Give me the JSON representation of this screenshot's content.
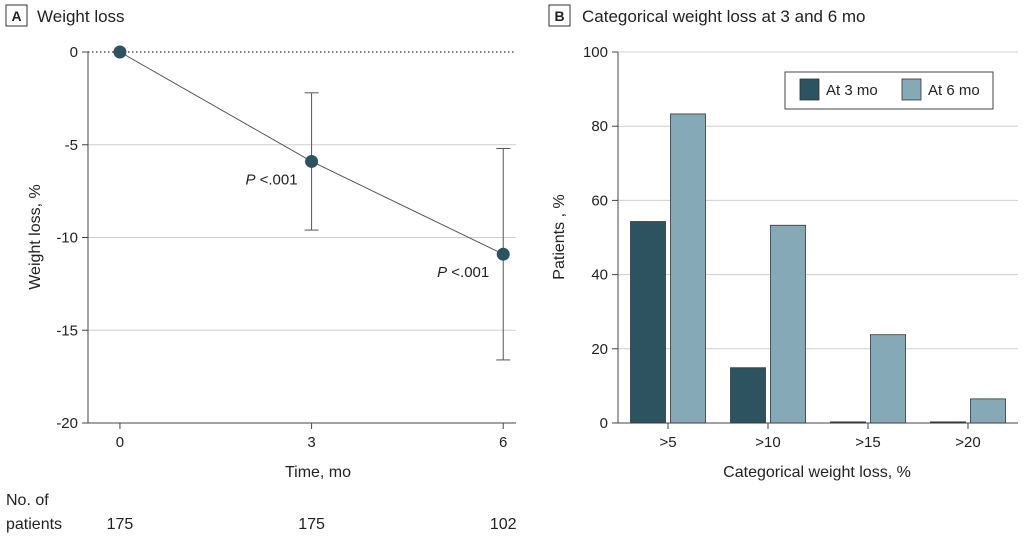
{
  "colors": {
    "marker": "#2e5360",
    "line": "#555555",
    "bar_3mo": "#2e5360",
    "bar_6mo": "#86a9b8",
    "text": "#222222"
  },
  "chart_data": [
    {
      "panel_letter": "A",
      "title": "Weight loss",
      "type": "line",
      "xlabel": "Time, mo",
      "ylabel": "Weight loss, %",
      "xlim": [
        -0.5,
        6.2
      ],
      "ylim": [
        -20,
        0
      ],
      "x_ticks": [
        "0",
        "3",
        "6"
      ],
      "y_ticks": [
        "0",
        "-5",
        "-10",
        "-15",
        "-20"
      ],
      "grid": true,
      "zero_line": "dotted",
      "series": [
        {
          "x": [
            0,
            3,
            6
          ],
          "y": [
            0,
            -5.9,
            -10.9
          ],
          "error_low": [
            0,
            -9.6,
            -16.6
          ],
          "error_high": [
            0,
            -2.2,
            -5.2
          ]
        }
      ],
      "annotations": [
        {
          "label_italic": "P",
          "label_rest": " <.001",
          "x": 3,
          "y": -5.9,
          "anchor": "left-below"
        },
        {
          "label_italic": "P",
          "label_rest": " <.001",
          "x": 6,
          "y": -10.9,
          "anchor": "left-below"
        }
      ],
      "patients_header": [
        "No. of",
        "patients"
      ],
      "patients_counts": [
        "175",
        "175",
        "102"
      ]
    },
    {
      "panel_letter": "B",
      "title": "Categorical weight loss at 3 and 6 mo",
      "type": "bar",
      "xlabel": "Categorical weight loss, %",
      "ylabel": "Patients , %",
      "ylim": [
        0,
        100
      ],
      "y_ticks": [
        "0",
        "20",
        "40",
        "60",
        "80",
        "100"
      ],
      "grid": true,
      "legend_position": "top-right",
      "categories": [
        ">5",
        ">10",
        ">15",
        ">20"
      ],
      "series": [
        {
          "name": "At 3 mo",
          "values": [
            54.3,
            14.9,
            0.3,
            0.3
          ]
        },
        {
          "name": "At 6 mo",
          "values": [
            83.3,
            53.3,
            23.8,
            6.5
          ]
        }
      ]
    }
  ]
}
